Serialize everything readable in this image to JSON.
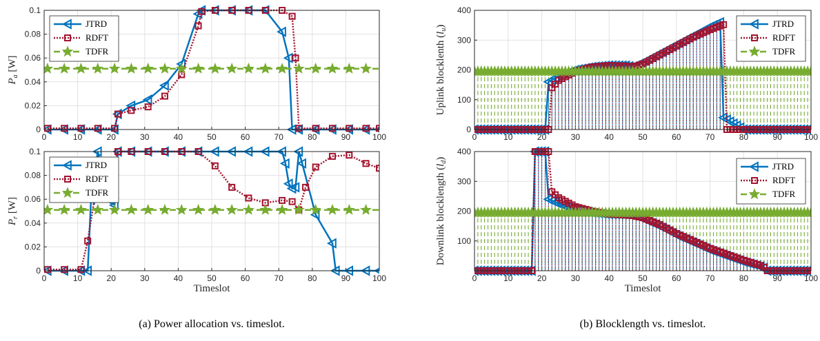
{
  "colors": {
    "JTRD": "#0072BD",
    "RDFT": "#A2142F",
    "TDFR": "#77AC30",
    "grid": "#e1e1e1",
    "axis": "#262626"
  },
  "captions": {
    "left": "(a) Power allocation vs. timeslot.",
    "right": "(b) Blocklength vs. timeslot."
  },
  "chart_data": [
    {
      "id": "pa",
      "type": "line",
      "ylabel": "P_a [W]",
      "ylabel_main": "P",
      "ylabel_sub": "a",
      "ylabel_unit": " [W]",
      "xlabel": "",
      "xlim": [
        0,
        100
      ],
      "ylim": [
        0,
        0.1
      ],
      "xticks": [
        "0",
        "10",
        "20",
        "30",
        "40",
        "50",
        "60",
        "70",
        "80",
        "90",
        "100"
      ],
      "yticks": [
        "0",
        "0.02",
        "0.04",
        "0.06",
        "0.08",
        "0.1"
      ],
      "grid": true,
      "legend_position": "top-left",
      "series": [
        {
          "name": "JTRD",
          "marker": "triangle-left",
          "style": "solid",
          "x": [
            1,
            6,
            11,
            16,
            21,
            22,
            26,
            31,
            36,
            41,
            46,
            47,
            51,
            56,
            61,
            66,
            71,
            73,
            74,
            76,
            81,
            86,
            91,
            96,
            100
          ],
          "y": [
            0,
            0,
            0,
            0,
            0,
            0.013,
            0.02,
            0.025,
            0.037,
            0.055,
            0.097,
            0.1,
            0.1,
            0.1,
            0.1,
            0.1,
            0.082,
            0.06,
            0.0,
            0,
            0,
            0,
            0,
            0,
            0
          ]
        },
        {
          "name": "RDFT",
          "marker": "square",
          "style": "dotted",
          "x": [
            1,
            6,
            11,
            16,
            21,
            22,
            26,
            31,
            36,
            41,
            46,
            47,
            51,
            56,
            61,
            66,
            71,
            74,
            75,
            76,
            81,
            86,
            91,
            96,
            100
          ],
          "y": [
            0.001,
            0.001,
            0.001,
            0.001,
            0.001,
            0.013,
            0.016,
            0.019,
            0.028,
            0.046,
            0.087,
            0.099,
            0.1,
            0.1,
            0.1,
            0.1,
            0.1,
            0.095,
            0.06,
            0.001,
            0.001,
            0.001,
            0.001,
            0.001,
            0.001
          ]
        },
        {
          "name": "TDFR",
          "marker": "star",
          "style": "dashed",
          "x": [
            0,
            100
          ],
          "y": [
            0.051,
            0.051
          ],
          "marker_x": [
            1,
            6,
            11,
            16,
            21,
            26,
            31,
            36,
            41,
            46,
            51,
            56,
            61,
            66,
            71,
            76,
            81,
            86,
            91,
            96
          ]
        }
      ]
    },
    {
      "id": "pr",
      "type": "line",
      "ylabel": "P_r [W]",
      "ylabel_main": "P",
      "ylabel_sub": "r",
      "ylabel_unit": " [W]",
      "xlabel": "Timeslot",
      "xlim": [
        0,
        100
      ],
      "ylim": [
        0,
        0.1
      ],
      "xticks": [
        "0",
        "10",
        "20",
        "30",
        "40",
        "50",
        "60",
        "70",
        "80",
        "90",
        "100"
      ],
      "yticks": [
        "0",
        "0.02",
        "0.04",
        "0.06",
        "0.08",
        "0.1"
      ],
      "grid": true,
      "legend_position": "top-left",
      "series": [
        {
          "name": "JTRD",
          "marker": "triangle-left",
          "style": "solid",
          "x": [
            1,
            6,
            11,
            13,
            14,
            16,
            19,
            21,
            22,
            26,
            31,
            36,
            41,
            46,
            51,
            56,
            61,
            66,
            71,
            72,
            73,
            74,
            75,
            76,
            77,
            81,
            86,
            87,
            91,
            96,
            100
          ],
          "y": [
            0,
            0,
            0,
            0,
            0.06,
            0.1,
            0.06,
            0.055,
            0.1,
            0.1,
            0.1,
            0.1,
            0.1,
            0.1,
            0.1,
            0.1,
            0.1,
            0.1,
            0.1,
            0.09,
            0.073,
            0.069,
            0.07,
            0.1,
            0.09,
            0.047,
            0.023,
            0,
            0,
            0,
            0
          ]
        },
        {
          "name": "RDFT",
          "marker": "square",
          "style": "dotted",
          "x": [
            1,
            6,
            11,
            13,
            15,
            16,
            19,
            21,
            22,
            26,
            31,
            36,
            41,
            46,
            51,
            56,
            61,
            66,
            71,
            74,
            76,
            78,
            81,
            86,
            91,
            96,
            100
          ],
          "y": [
            0.001,
            0.001,
            0.001,
            0.025,
            0.06,
            0.07,
            0.087,
            0.092,
            0.1,
            0.1,
            0.1,
            0.1,
            0.1,
            0.1,
            0.088,
            0.07,
            0.061,
            0.057,
            0.059,
            0.058,
            0.051,
            0.07,
            0.087,
            0.096,
            0.097,
            0.09,
            0.086
          ]
        },
        {
          "name": "TDFR",
          "marker": "star",
          "style": "dashed",
          "x": [
            0,
            100
          ],
          "y": [
            0.051,
            0.051
          ],
          "marker_x": [
            1,
            6,
            11,
            16,
            21,
            26,
            31,
            36,
            41,
            46,
            51,
            56,
            61,
            66,
            71,
            76,
            81,
            86,
            91,
            96
          ]
        }
      ]
    },
    {
      "id": "lu",
      "type": "line",
      "ylabel": "Uplink blocklenth (l_u)",
      "ylabel_main": "Uplink blocklenth (",
      "ylabel_var": "l",
      "ylabel_sub": "u",
      "ylabel_unit": ")",
      "xlabel": "",
      "xlim": [
        0,
        100
      ],
      "ylim": [
        0,
        400
      ],
      "xticks": [
        "0",
        "10",
        "20",
        "30",
        "40",
        "50",
        "60",
        "70",
        "80",
        "90",
        "100"
      ],
      "yticks": [
        "0",
        "100",
        "200",
        "300",
        "400"
      ],
      "grid": true,
      "legend_position": "top-right",
      "dense": {
        "start": 22,
        "end": 74,
        "step": 1
      },
      "series": [
        {
          "name": "JTRD",
          "marker": "triangle-left",
          "style": "solid",
          "x": [
            0,
            5,
            10,
            15,
            21,
            22,
            25,
            30,
            35,
            40,
            45,
            47,
            50,
            55,
            60,
            65,
            70,
            73,
            74,
            80,
            90,
            100
          ],
          "y": [
            0,
            0,
            0,
            0,
            0,
            160,
            180,
            200,
            210,
            215,
            215,
            210,
            225,
            255,
            285,
            315,
            345,
            360,
            40,
            0,
            0,
            0
          ]
        },
        {
          "name": "RDFT",
          "marker": "square",
          "style": "dotted",
          "x": [
            0,
            5,
            10,
            15,
            22,
            23,
            25,
            30,
            35,
            40,
            45,
            47,
            50,
            55,
            60,
            65,
            70,
            74,
            75,
            80,
            90,
            100
          ],
          "y": [
            0,
            0,
            0,
            0,
            0,
            140,
            165,
            195,
            210,
            215,
            213,
            210,
            220,
            250,
            280,
            310,
            335,
            352,
            0,
            0,
            0,
            0
          ]
        },
        {
          "name": "TDFR",
          "marker": "star",
          "style": "dashed",
          "x": [
            0,
            100
          ],
          "y": [
            195,
            195
          ],
          "dense_x": [
            0,
            100
          ]
        }
      ]
    },
    {
      "id": "ld",
      "type": "line",
      "ylabel": "Downlink blocklength (l_d)",
      "ylabel_main": "Downlink blocklength (",
      "ylabel_var": "l",
      "ylabel_sub": "d",
      "ylabel_unit": ")",
      "xlabel": "Timeslot",
      "xlim": [
        0,
        100
      ],
      "ylim": [
        0,
        400
      ],
      "xticks": [
        "0",
        "10",
        "20",
        "30",
        "40",
        "50",
        "60",
        "70",
        "80",
        "90",
        "100"
      ],
      "yticks": [
        "100",
        "200",
        "300",
        "400"
      ],
      "grid": true,
      "legend_position": "top-right",
      "dense": {
        "start": 18,
        "end": 87,
        "step": 1
      },
      "series": [
        {
          "name": "JTRD",
          "marker": "triangle-left",
          "style": "solid",
          "x": [
            0,
            5,
            10,
            17,
            18,
            19,
            20,
            21,
            22,
            25,
            30,
            35,
            40,
            47,
            50,
            55,
            60,
            65,
            70,
            75,
            80,
            85,
            86,
            87,
            90,
            100
          ],
          "y": [
            0,
            0,
            0,
            0,
            400,
            400,
            400,
            400,
            240,
            225,
            205,
            195,
            190,
            190,
            175,
            150,
            120,
            95,
            70,
            50,
            30,
            15,
            10,
            0,
            0,
            0
          ]
        },
        {
          "name": "RDFT",
          "marker": "square",
          "style": "dotted",
          "x": [
            0,
            5,
            10,
            17,
            18,
            19,
            20,
            21,
            22,
            23,
            25,
            30,
            35,
            40,
            47,
            50,
            55,
            60,
            65,
            70,
            75,
            80,
            85,
            86,
            87,
            90,
            100
          ],
          "y": [
            0,
            0,
            0,
            0,
            400,
            400,
            400,
            400,
            400,
            265,
            245,
            215,
            200,
            190,
            185,
            178,
            155,
            125,
            100,
            75,
            55,
            35,
            18,
            12,
            0,
            0,
            0
          ]
        },
        {
          "name": "TDFR",
          "marker": "star",
          "style": "dashed",
          "x": [
            0,
            100
          ],
          "y": [
            195,
            195
          ]
        }
      ]
    }
  ]
}
